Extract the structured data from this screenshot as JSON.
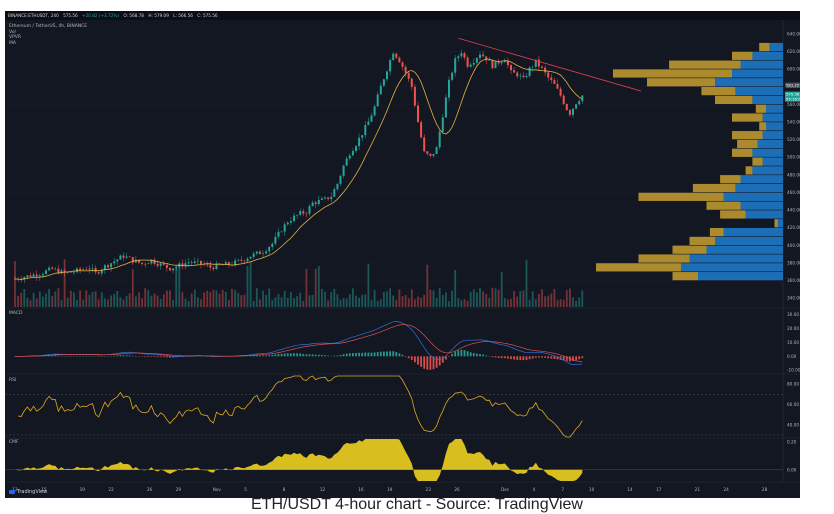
{
  "header": {
    "symbol": "BINANCE:ETHUSDT, 240",
    "price": "575.56",
    "change": "+20.82 (+3.72%)",
    "o": "O: 568.78",
    "h": "H: 579.09",
    "l": "L: 566.56",
    "c": "C: 575.56"
  },
  "legend": {
    "title": "Ethereum / TetherUS, 4h, BINANCE",
    "line1": "Vol",
    "line2": "VPVR",
    "line3": "MA"
  },
  "panes": {
    "macd": "MACD",
    "rsi": "RSI",
    "cmf": "CMF"
  },
  "brand": "TradingView",
  "caption": "ETH/USDT 4-hour chart - Source: TradingView",
  "colors": {
    "background": "#131722",
    "up": "#26a69a",
    "down": "#ef5350",
    "ma": "#e0b040",
    "trendline": "#e04050",
    "vp_buy": "#1e78c8",
    "vp_sell": "#c8a030",
    "rsi": "#e0a820",
    "cmf": "#f0d020",
    "macd": "#3070e0",
    "signal": "#e05050"
  },
  "chart_data": [
    {
      "type": "candlestick",
      "title": "Ethereum / TetherUS, 4h, BINANCE",
      "ylim": [
        330,
        650
      ],
      "x_ticks": [
        "12",
        "15",
        "19",
        "22",
        "26",
        "29",
        "Nov",
        "5",
        "8",
        "12",
        "16",
        "19",
        "23",
        "26",
        "Dec",
        "4",
        "7",
        "10",
        "14",
        "17",
        "21",
        "24",
        "28"
      ],
      "y_ticks": [
        340,
        360,
        380,
        400,
        420,
        440,
        460,
        480,
        500,
        520,
        540,
        560,
        580,
        600,
        620,
        640
      ],
      "price_labels": [
        "581.25",
        "575.56",
        "55:16:58"
      ],
      "close_path": [
        [
          0,
          362
        ],
        [
          4,
          365
        ],
        [
          8,
          368
        ],
        [
          12,
          373
        ],
        [
          16,
          368
        ],
        [
          20,
          371
        ],
        [
          24,
          375
        ],
        [
          26,
          368
        ],
        [
          28,
          374
        ],
        [
          32,
          382
        ],
        [
          35,
          388
        ],
        [
          38,
          383
        ],
        [
          41,
          379
        ],
        [
          44,
          383
        ],
        [
          47,
          378
        ],
        [
          50,
          374
        ],
        [
          53,
          377
        ],
        [
          56,
          381
        ],
        [
          60,
          379
        ],
        [
          63,
          375
        ],
        [
          66,
          377
        ],
        [
          70,
          379
        ],
        [
          73,
          383
        ],
        [
          76,
          388
        ],
        [
          80,
          393
        ],
        [
          83,
          402
        ],
        [
          86,
          418
        ],
        [
          88,
          427
        ],
        [
          90,
          432
        ],
        [
          92,
          436
        ],
        [
          94,
          438
        ],
        [
          96,
          448
        ],
        [
          98,
          450
        ],
        [
          100,
          452
        ],
        [
          102,
          456
        ],
        [
          104,
          470
        ],
        [
          106,
          490
        ],
        [
          108,
          505
        ],
        [
          110,
          515
        ],
        [
          112,
          527
        ],
        [
          114,
          540
        ],
        [
          116,
          557
        ],
        [
          118,
          580
        ],
        [
          120,
          600
        ],
        [
          122,
          620
        ],
        [
          124,
          610
        ],
        [
          126,
          596
        ],
        [
          128,
          580
        ],
        [
          130,
          540
        ],
        [
          132,
          505
        ],
        [
          134,
          500
        ],
        [
          136,
          510
        ],
        [
          138,
          548
        ],
        [
          140,
          585
        ],
        [
          142,
          610
        ],
        [
          144,
          620
        ],
        [
          146,
          605
        ],
        [
          148,
          610
        ],
        [
          150,
          618
        ],
        [
          152,
          612
        ],
        [
          154,
          604
        ],
        [
          156,
          608
        ],
        [
          158,
          612
        ],
        [
          160,
          596
        ],
        [
          162,
          594
        ],
        [
          164,
          588
        ],
        [
          166,
          600
        ],
        [
          168,
          608
        ],
        [
          170,
          600
        ],
        [
          172,
          590
        ],
        [
          174,
          582
        ],
        [
          176,
          570
        ],
        [
          178,
          555
        ],
        [
          179,
          550
        ],
        [
          181,
          562
        ],
        [
          183,
          570
        ]
      ],
      "trendline": [
        [
          143,
          635
        ],
        [
          202,
          575
        ]
      ],
      "volume_profile": {
        "bucket_size": 10,
        "buckets": [
          {
            "price": 365,
            "buy": 50,
            "sell": 15
          },
          {
            "price": 375,
            "buy": 60,
            "sell": 50
          },
          {
            "price": 385,
            "buy": 55,
            "sell": 30
          },
          {
            "price": 395,
            "buy": 45,
            "sell": 20
          },
          {
            "price": 405,
            "buy": 40,
            "sell": 15
          },
          {
            "price": 415,
            "buy": 35,
            "sell": 8
          },
          {
            "price": 425,
            "buy": 3,
            "sell": 2
          },
          {
            "price": 435,
            "buy": 22,
            "sell": 15
          },
          {
            "price": 445,
            "buy": 25,
            "sell": 20
          },
          {
            "price": 455,
            "buy": 35,
            "sell": 50
          },
          {
            "price": 465,
            "buy": 28,
            "sell": 25
          },
          {
            "price": 475,
            "buy": 25,
            "sell": 12
          },
          {
            "price": 485,
            "buy": 18,
            "sell": 4
          },
          {
            "price": 495,
            "buy": 12,
            "sell": 6
          },
          {
            "price": 505,
            "buy": 18,
            "sell": 12
          },
          {
            "price": 515,
            "buy": 15,
            "sell": 12
          },
          {
            "price": 525,
            "buy": 12,
            "sell": 18
          },
          {
            "price": 535,
            "buy": 10,
            "sell": 4
          },
          {
            "price": 545,
            "buy": 12,
            "sell": 18
          },
          {
            "price": 555,
            "buy": 10,
            "sell": 6
          },
          {
            "price": 565,
            "buy": 18,
            "sell": 22
          },
          {
            "price": 575,
            "buy": 28,
            "sell": 20
          },
          {
            "price": 585,
            "buy": 40,
            "sell": 40
          },
          {
            "price": 595,
            "buy": 30,
            "sell": 70
          },
          {
            "price": 605,
            "buy": 25,
            "sell": 42
          },
          {
            "price": 615,
            "buy": 18,
            "sell": 12
          },
          {
            "price": 625,
            "buy": 8,
            "sell": 6
          }
        ]
      }
    },
    {
      "type": "line",
      "title": "MACD",
      "ylim": [
        -12,
        34
      ],
      "y_ticks": [
        -10,
        0,
        10,
        20,
        30
      ]
    },
    {
      "type": "line",
      "title": "RSI",
      "ylim": [
        28,
        88
      ],
      "y_ticks": [
        40,
        60,
        80
      ],
      "bands": [
        30,
        70
      ]
    },
    {
      "type": "area",
      "title": "CMF",
      "ylim": [
        -0.08,
        0.22
      ],
      "y_ticks": [
        0.0,
        0.2
      ],
      "y_tick_labels": [
        "0.00",
        "0.20"
      ]
    }
  ]
}
